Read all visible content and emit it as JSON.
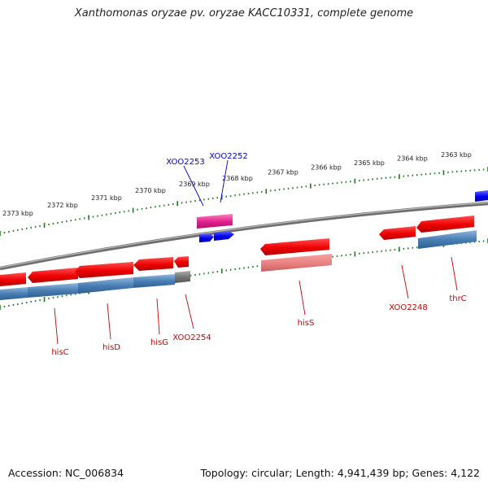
{
  "title": "Xanthomonas oryzae pv. oryzae KACC10331, complete genome",
  "footer": {
    "accession": "Accession: NC_006834",
    "summary": "Topology: circular; Length: 4,941,439 bp; Genes: 4,122"
  },
  "scale_labels": [
    "2373 kbp",
    "2372 kbp",
    "2371 kbp",
    "2370 kbp",
    "2369 kbp",
    "2368 kbp",
    "2367 kbp",
    "2366 kbp",
    "2365 kbp",
    "2364 kbp",
    "2363 kbp"
  ],
  "genes_upper": [
    {
      "name": "XOO2253",
      "color": "#0000cc"
    },
    {
      "name": "XOO2252",
      "color": "#0000cc"
    }
  ],
  "genes_lower": [
    {
      "name": "hisC",
      "color": "#cc0000"
    },
    {
      "name": "hisD",
      "color": "#cc0000"
    },
    {
      "name": "hisG",
      "color": "#cc0000"
    },
    {
      "name": "XOO2254",
      "color": "#cc0000"
    },
    {
      "name": "hisS",
      "color": "#cc0000"
    },
    {
      "name": "XOO2248",
      "color": "#cc0000"
    },
    {
      "name": "thrC",
      "color": "#cc0000"
    }
  ],
  "colors": {
    "forward_cds": "#0000ee",
    "reverse_cds": "#ee0000",
    "rna_feature": "#e0208c",
    "protein_band": "#4a7fb5",
    "tick": "#1a7a1a",
    "backbone": "#808080"
  }
}
